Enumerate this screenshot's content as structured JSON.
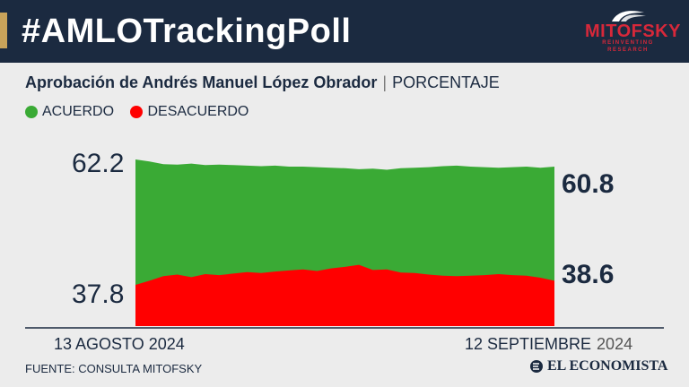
{
  "header": {
    "title": "#AMLOTrackingPoll",
    "logo": {
      "name": "MITOFSKY",
      "tagline": "REINVENTING RESEARCH"
    }
  },
  "subtitle": {
    "main": "Aprobación de Andrés Manuel López Obrador",
    "unit": "PORCENTAJE"
  },
  "legend": [
    {
      "label": "ACUERDO",
      "color": "#3aaa35"
    },
    {
      "label": "DESACUERDO",
      "color": "#ff0000"
    }
  ],
  "chart_data": {
    "type": "area",
    "x_start_label": "13 AGOSTO 2024",
    "x_end_label_day_month": "12 SEPTIEMBRE",
    "x_end_label_year": "2024",
    "y_axis_labels": [
      "62.2",
      "37.8"
    ],
    "ylim": [
      37.8,
      62.2
    ],
    "end_labels": [
      "60.8",
      "38.6"
    ],
    "series": [
      {
        "name": "ACUERDO",
        "color": "#3aaa35",
        "values": [
          62.2,
          61.8,
          61.3,
          61.2,
          61.4,
          61.1,
          61.2,
          61.1,
          61.0,
          60.9,
          61.0,
          60.8,
          60.8,
          60.7,
          60.6,
          60.5,
          60.3,
          60.4,
          60.2,
          60.5,
          60.6,
          60.7,
          60.9,
          61.0,
          60.8,
          60.7,
          60.6,
          60.7,
          60.8,
          60.6,
          60.8
        ]
      },
      {
        "name": "DESACUERDO",
        "color": "#ff0000",
        "values": [
          37.8,
          38.6,
          39.5,
          39.8,
          39.3,
          39.9,
          39.7,
          40.0,
          40.3,
          40.1,
          40.4,
          40.6,
          40.8,
          40.5,
          41.0,
          41.3,
          41.7,
          40.7,
          40.8,
          40.2,
          40.1,
          39.8,
          39.6,
          39.5,
          39.6,
          39.7,
          39.9,
          39.7,
          39.6,
          39.2,
          38.6
        ]
      }
    ]
  },
  "footer": {
    "source": "FUENTE: CONSULTA MITOFSKY",
    "brand": "EL ECONOMISTA"
  }
}
